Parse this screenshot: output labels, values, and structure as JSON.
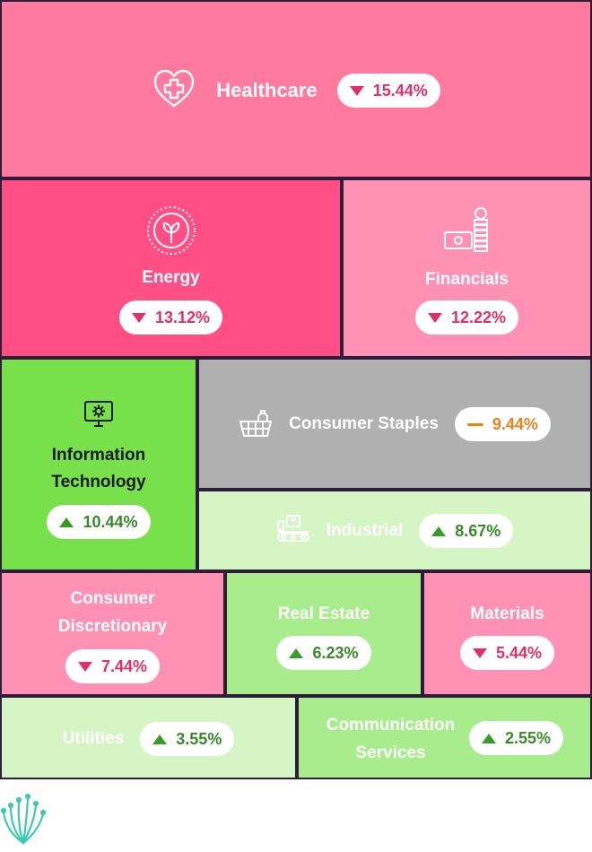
{
  "chart_data": {
    "type": "treemap",
    "sectors": [
      {
        "name": "Healthcare",
        "value": "15.44%",
        "direction": "down",
        "color": "#ff7a9e",
        "icon": "heart-medical-icon"
      },
      {
        "name": "Energy",
        "value": "13.12%",
        "direction": "down",
        "color": "#ff4f84",
        "icon": "sprout-icon"
      },
      {
        "name": "Financials",
        "value": "12.22%",
        "direction": "down",
        "color": "#ff92b4",
        "icon": "money-coins-icon"
      },
      {
        "name_lines": [
          "Information",
          "Technology"
        ],
        "value": "10.44%",
        "direction": "up",
        "color": "#78e04a",
        "icon": "monitor-gear-icon"
      },
      {
        "name": "Consumer Staples",
        "value": "9.44%",
        "direction": "flat",
        "color": "#b0b0b0",
        "icon": "shopping-basket-icon"
      },
      {
        "name": "Industrial",
        "value": "8.67%",
        "direction": "up",
        "color": "#d5f5c5",
        "icon": "conveyor-icon"
      },
      {
        "name_lines": [
          "Consumer",
          "Discretionary"
        ],
        "value": "7.44%",
        "direction": "down",
        "color": "#ff92b4"
      },
      {
        "name": "Real Estate",
        "value": "6.23%",
        "direction": "up",
        "color": "#a8ec8e"
      },
      {
        "name": "Materials",
        "value": "5.44%",
        "direction": "down",
        "color": "#ff92b4"
      },
      {
        "name": "Utilities",
        "value": "3.55%",
        "direction": "up",
        "color": "#d5f5c5"
      },
      {
        "name_lines": [
          "Communication",
          "Services"
        ],
        "value": "2.55%",
        "direction": "up",
        "color": "#a8ec8e"
      }
    ]
  },
  "colors": {
    "down": "#e0306a",
    "up": "#3a9a2a",
    "flat": "#e8801a",
    "border": "#2f1b3a"
  },
  "footer": {
    "logo_icon": "brand-logo-icon"
  }
}
